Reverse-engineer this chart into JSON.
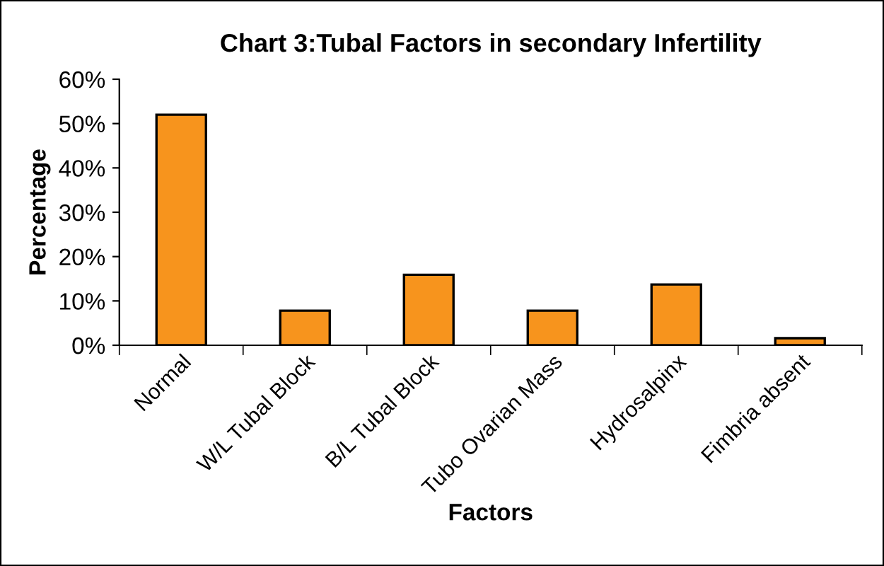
{
  "chart_data": {
    "type": "bar",
    "title": "Chart 3:Tubal Factors in secondary Infertility",
    "xlabel": "Factors",
    "ylabel": "Percentage",
    "categories": [
      "Normal",
      "W/L Tubal Block",
      "B/L Tubal Block",
      "Tubo Ovarian Mass",
      "Hydrosalpinx",
      "Fimbria absent"
    ],
    "values": [
      52,
      7.8,
      15.9,
      7.8,
      13.7,
      1.6
    ],
    "color": "#f7941d",
    "ylim": [
      0,
      60
    ],
    "yticks": [
      {
        "value": 0,
        "label": "0%"
      },
      {
        "value": 10,
        "label": "10%"
      },
      {
        "value": 20,
        "label": "20%"
      },
      {
        "value": 30,
        "label": "30%"
      },
      {
        "value": 40,
        "label": "40%"
      },
      {
        "value": 50,
        "label": "50%"
      },
      {
        "value": 60,
        "label": "60%"
      }
    ],
    "grid": false,
    "legend": false
  }
}
